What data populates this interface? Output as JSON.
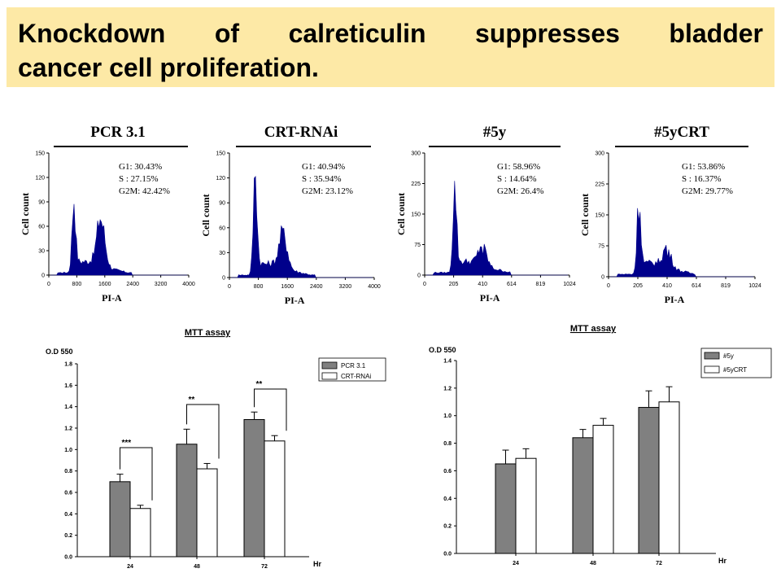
{
  "title": {
    "line1": [
      "Knockdown",
      "of",
      "calreticulin",
      "suppresses",
      "bladder"
    ],
    "line2": "cancer  cell proliferation."
  },
  "flow_panels": [
    {
      "title": "PCR 3.1",
      "ylabel": "Cell count",
      "xlabel": "PI-A",
      "yticks": [
        "0",
        "30",
        "60",
        "90",
        "120",
        "150"
      ],
      "xticks": [
        "0",
        "800",
        "1600",
        "2400",
        "3200",
        "4000"
      ],
      "stats": [
        "G1: 30.43%",
        "S   : 27.15%",
        "G2M: 42.42%"
      ],
      "g1_peak": 0.55,
      "g2_peak": 0.38,
      "g1_pos": 0.17,
      "g2_pos": 0.37
    },
    {
      "title": "CRT-RNAi",
      "ylabel": "Cell count",
      "xlabel": "PI-A",
      "yticks": [
        "0",
        "30",
        "60",
        "90",
        "120",
        "150"
      ],
      "xticks": [
        "0",
        "800",
        "1600",
        "2400",
        "3200",
        "4000"
      ],
      "stats": [
        "G1: 40.94%",
        "S   : 35.94%",
        "G2M: 23.12%"
      ],
      "g1_peak": 0.8,
      "g2_peak": 0.27,
      "g1_pos": 0.17,
      "g2_pos": 0.37
    },
    {
      "title": "#5y",
      "ylabel": "Cell count",
      "xlabel": "PI-A",
      "yticks": [
        "0",
        "75",
        "150",
        "225",
        "300"
      ],
      "xticks": [
        "0",
        "205",
        "410",
        "614",
        "819",
        "1024"
      ],
      "stats": [
        "G1: 58.96%",
        "S   : 14.64%",
        "G2M: 26.4%"
      ],
      "g1_peak": 0.67,
      "g2_peak": 0.15,
      "g1_pos": 0.2,
      "g2_pos": 0.4
    },
    {
      "title": "#5yCRT",
      "ylabel": "Cell count",
      "xlabel": "PI-A",
      "yticks": [
        "0",
        "75",
        "150",
        "225",
        "300"
      ],
      "xticks": [
        "0",
        "205",
        "410",
        "614",
        "819",
        "1024"
      ],
      "stats": [
        "G1: 53.86%",
        "S   : 16.37%",
        "G2M: 29.77%"
      ],
      "g1_peak": 0.58,
      "g2_peak": 0.14,
      "g1_pos": 0.2,
      "g2_pos": 0.4
    }
  ],
  "chart_data": [
    {
      "type": "bar",
      "title": "MTT assay",
      "ylabel": "O.D 550",
      "xlabel": "Hr",
      "categories": [
        "24",
        "48",
        "72"
      ],
      "ylim": [
        0,
        1.8
      ],
      "yticks": [
        "0.0",
        "0.2",
        "0.4",
        "0.6",
        "0.8",
        "1.0",
        "1.2",
        "1.4",
        "1.6",
        "1.8"
      ],
      "series": [
        {
          "name": "PCR 3.1",
          "values": [
            0.7,
            1.05,
            1.28
          ],
          "errors": [
            0.07,
            0.14,
            0.07
          ],
          "color": "#808080"
        },
        {
          "name": "CRT-RNAi",
          "values": [
            0.45,
            0.82,
            1.08
          ],
          "errors": [
            0.03,
            0.05,
            0.05
          ],
          "color": "#ffffff"
        }
      ],
      "significance": [
        "***",
        "**",
        "**"
      ],
      "legend": "top-right"
    },
    {
      "type": "bar",
      "title": "MTT assay",
      "ylabel": "O.D 550",
      "xlabel": "Hr",
      "categories": [
        "24",
        "48",
        "72"
      ],
      "ylim": [
        0,
        1.4
      ],
      "yticks": [
        "0.0",
        "0.2",
        "0.4",
        "0.6",
        "0.8",
        "1.0",
        "1.2",
        "1.4"
      ],
      "series": [
        {
          "name": "#5y",
          "values": [
            0.65,
            0.84,
            1.06
          ],
          "errors": [
            0.1,
            0.06,
            0.12
          ],
          "color": "#808080"
        },
        {
          "name": "#5yCRT",
          "values": [
            0.69,
            0.93,
            1.1
          ],
          "errors": [
            0.07,
            0.05,
            0.11
          ],
          "color": "#ffffff"
        }
      ],
      "significance": [],
      "legend": "top-right"
    }
  ],
  "colors": {
    "banner": "#fde9a6",
    "histogram": "#00008b",
    "bar_gray": "#808080"
  }
}
